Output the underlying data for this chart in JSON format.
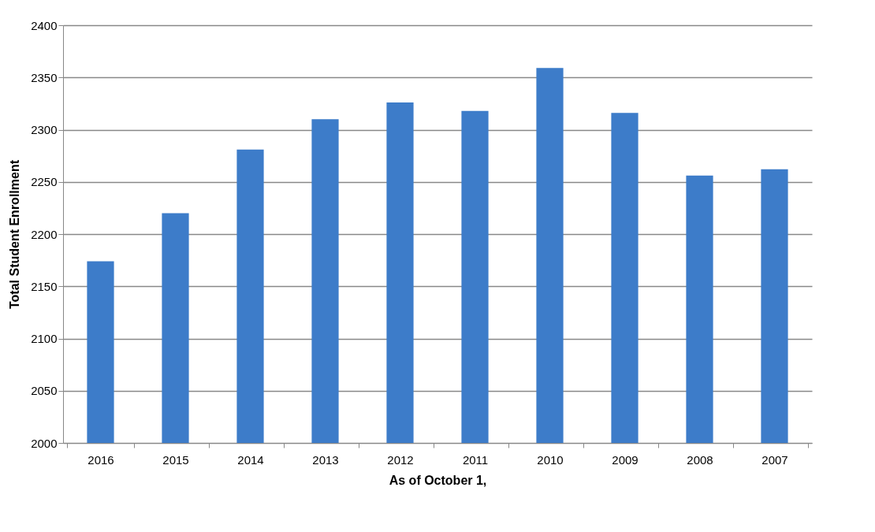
{
  "chart_data": {
    "type": "bar",
    "xlabel": "As of October 1,",
    "ylabel": "Total Student Enrollment",
    "categories": [
      "2016",
      "2015",
      "2014",
      "2013",
      "2012",
      "2011",
      "2010",
      "2009",
      "2008",
      "2007"
    ],
    "values": [
      2174,
      2220,
      2281,
      2310,
      2326,
      2318,
      2359,
      2316,
      2256,
      2262
    ],
    "color": "#3d7cc9",
    "ylim": [
      2000,
      2400
    ],
    "yticks": [
      2000,
      2050,
      2100,
      2150,
      2200,
      2250,
      2300,
      2350,
      2400
    ],
    "grid": "y",
    "legend": false
  }
}
